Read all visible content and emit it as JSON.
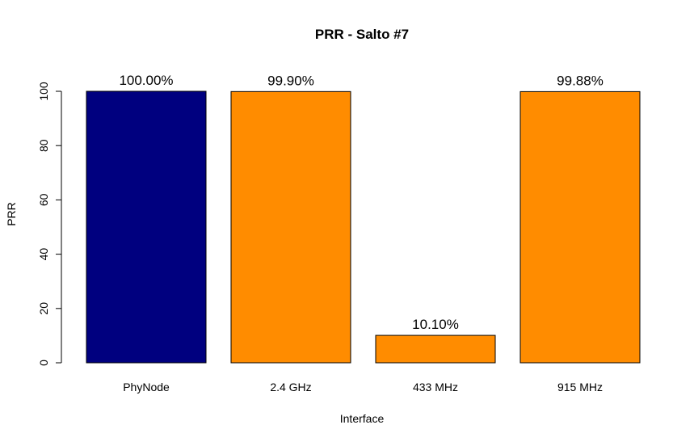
{
  "chart_data": {
    "type": "bar",
    "title": "PRR - Salto #7",
    "xlabel": "Interface",
    "ylabel": "PRR",
    "categories": [
      "PhyNode",
      "2.4 GHz",
      "433 MHz",
      "915 MHz"
    ],
    "values": [
      100.0,
      99.9,
      10.1,
      99.88
    ],
    "data_labels": [
      "100.00%",
      "99.90%",
      "10.10%",
      "99.88%"
    ],
    "colors": [
      "#00007F",
      "#FF8C00",
      "#FF8C00",
      "#FF8C00"
    ],
    "ylim": [
      0,
      100
    ],
    "yticks": [
      0,
      20,
      40,
      60,
      80,
      100
    ],
    "grid": false,
    "legend": "none"
  }
}
